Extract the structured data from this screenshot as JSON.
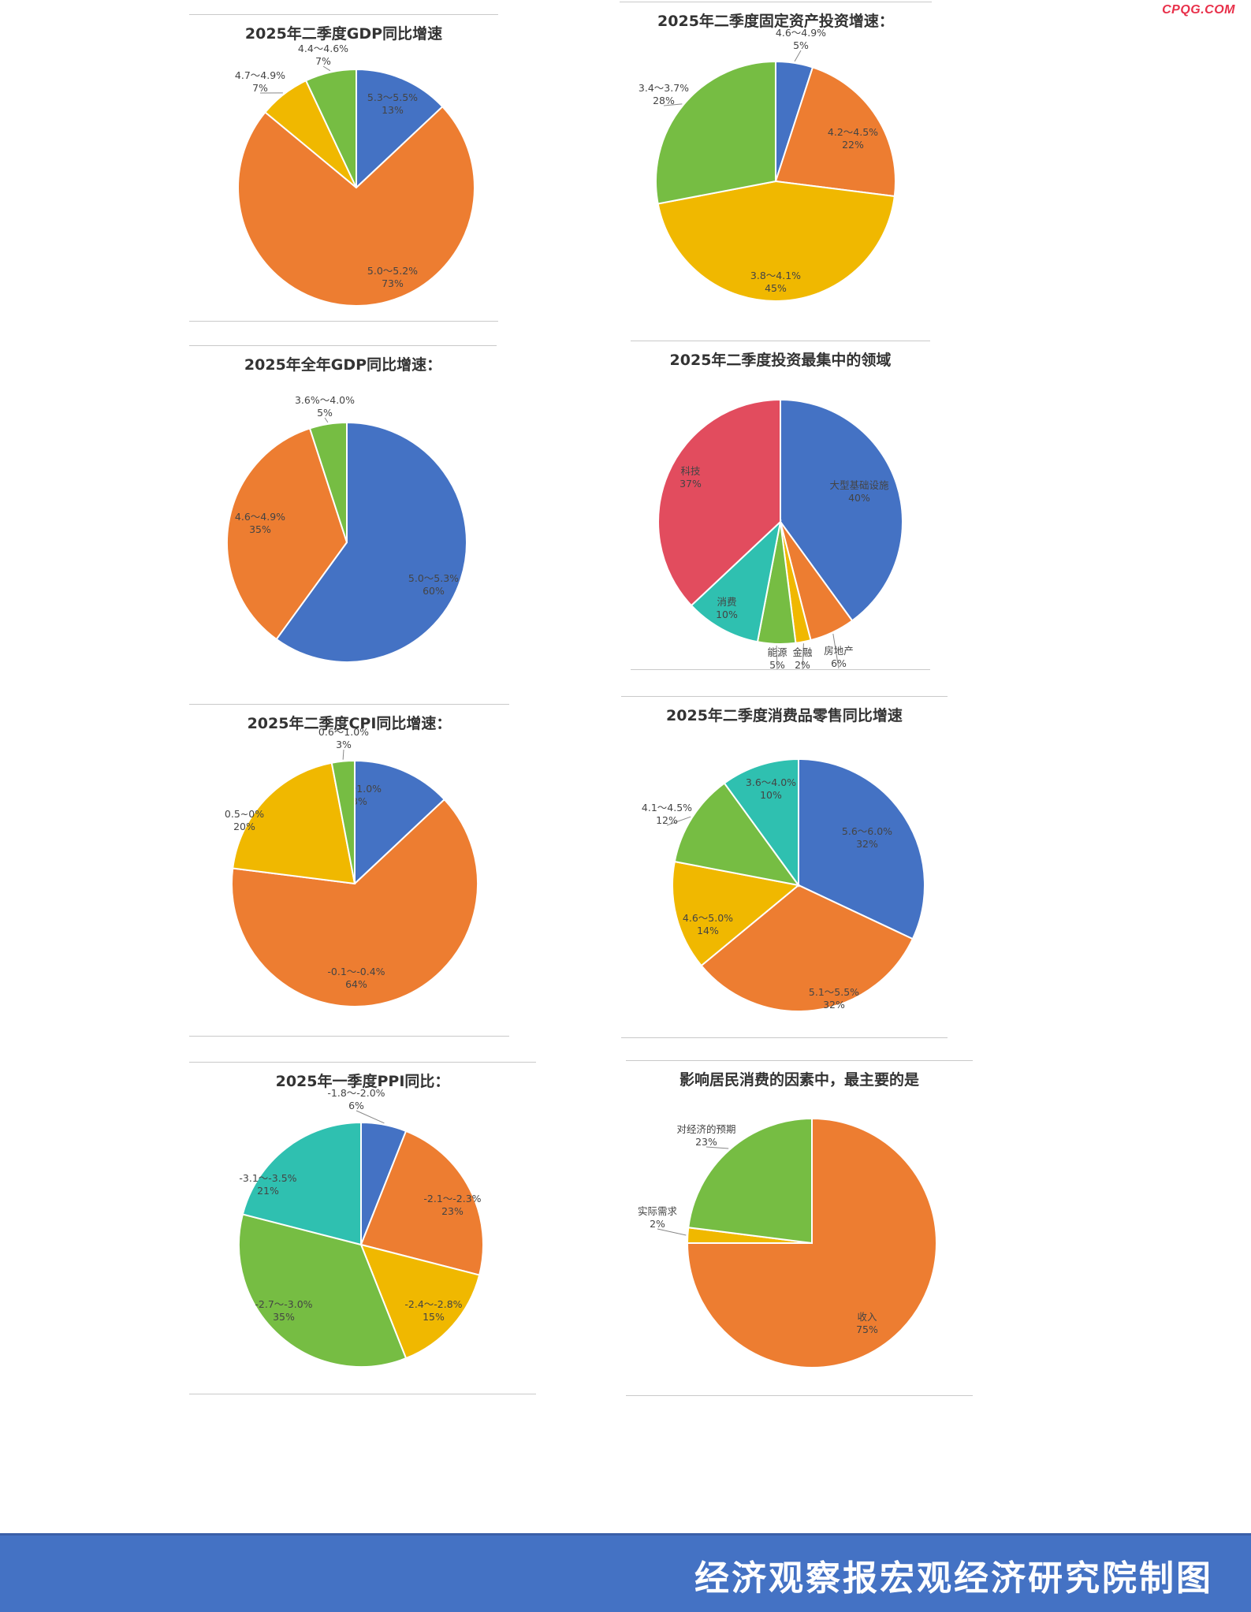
{
  "watermark": "CPQG.COM",
  "footer": {
    "text": "经济观察报宏观经济研究院制图"
  },
  "colors": {
    "blue": "#4472c4",
    "orange": "#ed7d31",
    "yellow": "#f0b800",
    "green": "#76bd43",
    "teal": "#2fc0b0",
    "red": "#e24c5e"
  },
  "chart_data": [
    {
      "id": "gdp-q2",
      "type": "pie",
      "title": "2025年二季度GDP同比增速",
      "slices": [
        {
          "label": "5.3～5.5%",
          "value": 13,
          "pct": "13%",
          "color": "#4472c4"
        },
        {
          "label": "5.0～5.2%",
          "value": 73,
          "pct": "73%",
          "color": "#ed7d31"
        },
        {
          "label": "4.7～4.9%",
          "value": 7,
          "pct": "7%",
          "color": "#f0b800"
        },
        {
          "label": "4.4～4.6%",
          "value": 7,
          "pct": "7%",
          "color": "#76bd43"
        }
      ]
    },
    {
      "id": "fai-q2",
      "type": "pie",
      "title": "2025年二季度固定资产投资增速：",
      "slices": [
        {
          "label": "4.6～4.9%",
          "value": 5,
          "pct": "5%",
          "color": "#4472c4"
        },
        {
          "label": "4.2～4.5%",
          "value": 22,
          "pct": "22%",
          "color": "#ed7d31"
        },
        {
          "label": "3.8～4.1%",
          "value": 45,
          "pct": "45%",
          "color": "#f0b800"
        },
        {
          "label": "3.4～3.7%",
          "value": 28,
          "pct": "28%",
          "color": "#76bd43"
        }
      ]
    },
    {
      "id": "gdp-year",
      "type": "pie",
      "title": "2025年全年GDP同比增速：",
      "slices": [
        {
          "label": "5.0～5.3%",
          "value": 60,
          "pct": "60%",
          "color": "#4472c4"
        },
        {
          "label": "4.6～4.9%",
          "value": 35,
          "pct": "35%",
          "color": "#ed7d31"
        },
        {
          "label": "3.6%～4.0%",
          "value": 5,
          "pct": "5%",
          "color": "#76bd43"
        }
      ]
    },
    {
      "id": "invest-areas",
      "type": "pie",
      "title": "2025年二季度投资最集中的领域",
      "slices": [
        {
          "label": "大型基础设施",
          "value": 40,
          "pct": "40%",
          "color": "#4472c4"
        },
        {
          "label": "房地产",
          "value": 6,
          "pct": "6%",
          "color": "#ed7d31"
        },
        {
          "label": "金融",
          "value": 2,
          "pct": "2%",
          "color": "#f0b800"
        },
        {
          "label": "能源",
          "value": 5,
          "pct": "5%",
          "color": "#76bd43"
        },
        {
          "label": "消费",
          "value": 10,
          "pct": "10%",
          "color": "#2fc0b0"
        },
        {
          "label": "科技",
          "value": 37,
          "pct": "37%",
          "color": "#e24c5e"
        }
      ]
    },
    {
      "id": "cpi-q2",
      "type": "pie",
      "title": "2025年二季度CPI同比增速：",
      "slices": [
        {
          "label": "0.5～1.0%",
          "value": 13,
          "pct": "13%",
          "color": "#4472c4"
        },
        {
          "label": "-0.1～-0.4%",
          "value": 64,
          "pct": "64%",
          "color": "#ed7d31"
        },
        {
          "label": "0.5~0%",
          "value": 20,
          "pct": "20%",
          "color": "#f0b800"
        },
        {
          "label": "0.6～1.0%",
          "value": 3,
          "pct": "3%",
          "color": "#76bd43"
        }
      ]
    },
    {
      "id": "retail-q2",
      "type": "pie",
      "title": "2025年二季度消费品零售同比增速",
      "slices": [
        {
          "label": "5.6～6.0%",
          "value": 32,
          "pct": "32%",
          "color": "#4472c4"
        },
        {
          "label": "5.1～5.5%",
          "value": 32,
          "pct": "32%",
          "color": "#ed7d31"
        },
        {
          "label": "4.6～5.0%",
          "value": 14,
          "pct": "14%",
          "color": "#f0b800"
        },
        {
          "label": "4.1～4.5%",
          "value": 12,
          "pct": "12%",
          "color": "#76bd43"
        },
        {
          "label": "3.6～4.0%",
          "value": 10,
          "pct": "10%",
          "color": "#2fc0b0"
        }
      ]
    },
    {
      "id": "ppi-q1",
      "type": "pie",
      "title": "2025年一季度PPI同比：",
      "slices": [
        {
          "label": "-1.8～-2.0%",
          "value": 6,
          "pct": "6%",
          "color": "#4472c4"
        },
        {
          "label": "-2.1～-2.3%",
          "value": 23,
          "pct": "23%",
          "color": "#ed7d31"
        },
        {
          "label": "-2.4～-2.8%",
          "value": 15,
          "pct": "15%",
          "color": "#f0b800"
        },
        {
          "label": "-2.7～-3.0%",
          "value": 35,
          "pct": "35%",
          "color": "#76bd43"
        },
        {
          "label": "-3.1～-3.5%",
          "value": 21,
          "pct": "21%",
          "color": "#2fc0b0"
        }
      ]
    },
    {
      "id": "consumption-factors",
      "type": "pie",
      "title": "影响居民消费的因素中，最主要的是",
      "slices": [
        {
          "label": "收入",
          "value": 75,
          "pct": "75%",
          "color": "#ed7d31"
        },
        {
          "label": "实际需求",
          "value": 2,
          "pct": "2%",
          "color": "#f0b800"
        },
        {
          "label": "对经济的预期",
          "value": 23,
          "pct": "23%",
          "color": "#76bd43"
        }
      ]
    }
  ]
}
